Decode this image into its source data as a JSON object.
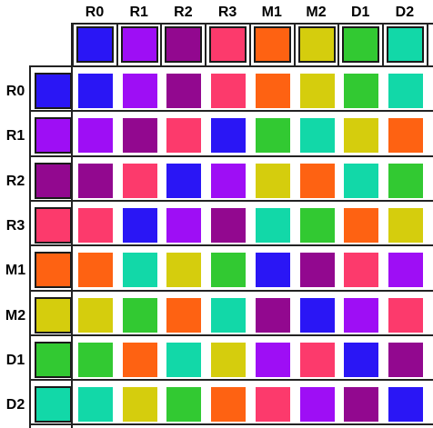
{
  "colors": {
    "R0": "#2a16f5",
    "R1": "#9e0ef5",
    "R2": "#92088f",
    "R3": "#fc3a6c",
    "M1": "#fe6212",
    "M2": "#d5cd0d",
    "D1": "#32c932",
    "D2": "#12d8a8"
  },
  "columns": [
    "R0",
    "R1",
    "R2",
    "R3",
    "M1",
    "M2",
    "D1",
    "D2"
  ],
  "rows": [
    {
      "label": "R0",
      "cells": [
        "R0",
        "R1",
        "R2",
        "R3",
        "M1",
        "M2",
        "D1",
        "D2"
      ]
    },
    {
      "label": "R1",
      "cells": [
        "R1",
        "R2",
        "R3",
        "R0",
        "D1",
        "D2",
        "M2",
        "M1"
      ]
    },
    {
      "label": "R2",
      "cells": [
        "R2",
        "R3",
        "R0",
        "R1",
        "M2",
        "M1",
        "D2",
        "D1"
      ]
    },
    {
      "label": "R3",
      "cells": [
        "R3",
        "R0",
        "R1",
        "R2",
        "D2",
        "D1",
        "M1",
        "M2"
      ]
    },
    {
      "label": "M1",
      "cells": [
        "M1",
        "D2",
        "M2",
        "D1",
        "R0",
        "R2",
        "R3",
        "R1"
      ]
    },
    {
      "label": "M2",
      "cells": [
        "M2",
        "D1",
        "M1",
        "D2",
        "R2",
        "R0",
        "R1",
        "R3"
      ]
    },
    {
      "label": "D1",
      "cells": [
        "D1",
        "M1",
        "D2",
        "M2",
        "R1",
        "R3",
        "R0",
        "R2"
      ]
    },
    {
      "label": "D2",
      "cells": [
        "D2",
        "M2",
        "D1",
        "M1",
        "R3",
        "R1",
        "R2",
        "R0"
      ]
    }
  ]
}
